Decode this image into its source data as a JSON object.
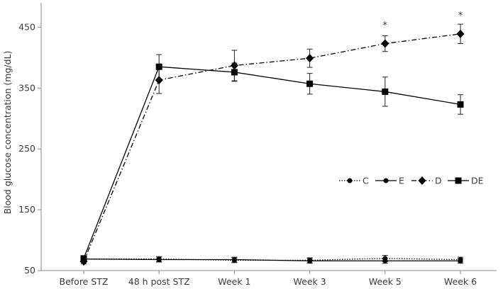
{
  "chart_data": {
    "type": "line",
    "title": "",
    "ylabel": "Blood glucose concentration (mg/dL)",
    "xlabel": "",
    "categories": [
      "Before STZ",
      "48 h post STZ",
      "Week 1",
      "Week 3",
      "Week 5",
      "Week 6"
    ],
    "ylim": [
      50,
      490
    ],
    "yticks": [
      "50",
      "150",
      "250",
      "350",
      "450"
    ],
    "grid": false,
    "legend_position": "right",
    "series": [
      {
        "name": "C",
        "line_style": "dotted",
        "marker": "circle",
        "values": [
          69,
          69,
          67,
          67,
          70,
          68
        ],
        "errors": [
          4,
          4,
          4,
          4,
          5,
          4
        ]
      },
      {
        "name": "E",
        "line_style": "solid",
        "marker": "circle",
        "values": [
          69,
          68,
          68,
          66,
          66,
          66
        ],
        "errors": [
          4,
          4,
          4,
          4,
          4,
          4
        ]
      },
      {
        "name": "D",
        "line_style": "dash-dot",
        "marker": "diamond",
        "values": [
          65,
          363,
          387,
          399,
          423,
          439
        ],
        "errors": [
          4,
          22,
          25,
          15,
          13,
          16
        ]
      },
      {
        "name": "DE",
        "line_style": "solid",
        "marker": "square",
        "values": [
          70,
          385,
          376,
          357,
          344,
          323
        ],
        "errors": [
          4,
          20,
          15,
          17,
          24,
          16
        ]
      }
    ],
    "annotations": [
      {
        "text": "*",
        "category": "Week 5",
        "value": 453
      },
      {
        "text": "*",
        "category": "Week 6",
        "value": 469
      }
    ]
  }
}
